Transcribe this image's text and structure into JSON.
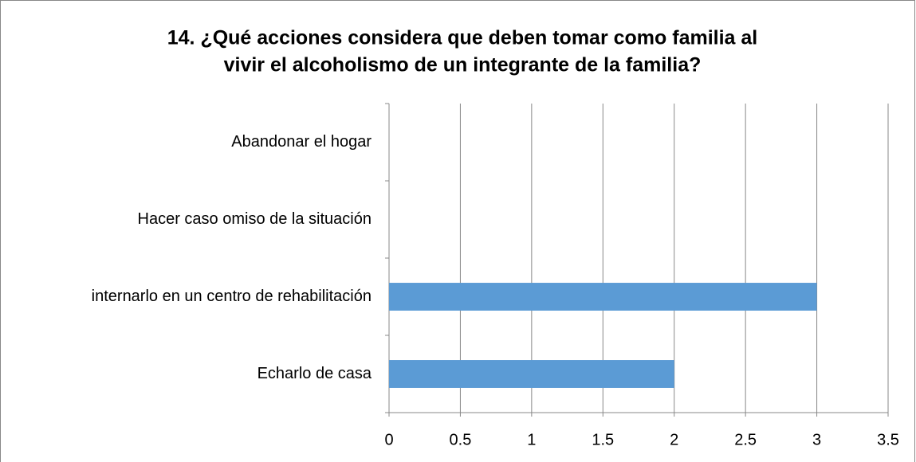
{
  "chart_data": {
    "type": "bar",
    "orientation": "horizontal",
    "title": [
      "14. ¿Qué acciones considera que deben tomar como  familia al",
      "vivir el alcoholismo de un integrante de la familia?"
    ],
    "categories": [
      "Abandonar el hogar",
      "Hacer caso omiso de la situación",
      "internarlo en un centro de rehabilitación",
      "Echarlo de casa"
    ],
    "values": [
      0,
      0,
      3,
      2
    ],
    "color": "#5b9bd5",
    "xlim": [
      0,
      3.5
    ],
    "xticks": [
      0,
      0.5,
      1,
      1.5,
      2,
      2.5,
      3,
      3.5
    ],
    "grid": true
  }
}
